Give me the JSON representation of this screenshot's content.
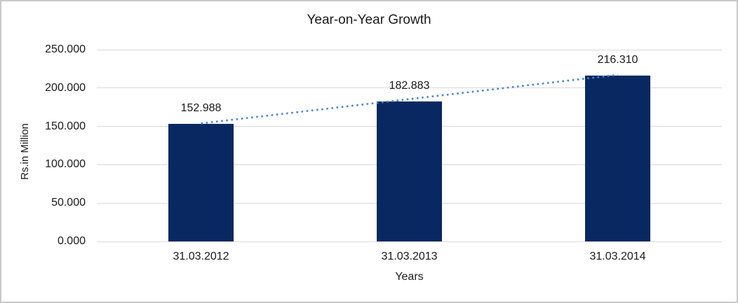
{
  "chart_data": {
    "type": "bar",
    "title": "Year-on-Year Growth",
    "xlabel": "Years",
    "ylabel": "Rs.in Million",
    "categories": [
      "31.03.2012",
      "31.03.2013",
      "31.03.2014"
    ],
    "values": [
      152.988,
      182.883,
      216.31
    ],
    "data_labels": [
      "152.988",
      "182.883",
      "216.310"
    ],
    "ytick_values": [
      0,
      50,
      100,
      150,
      200,
      250
    ],
    "ytick_labels": [
      "0.000",
      "50.000",
      "100.000",
      "150.000",
      "200.000",
      "250.000"
    ],
    "ylim": [
      0,
      250
    ],
    "grid": true,
    "legend_position": "none",
    "trendline": {
      "type": "linear",
      "style": "dotted"
    },
    "colors": {
      "bar": "#092862",
      "trendline": "#4a86c8",
      "gridline": "#d9d9d9",
      "text": "#1a1a1a",
      "frame_border": "#c9c9c9",
      "background": "#ffffff"
    }
  }
}
